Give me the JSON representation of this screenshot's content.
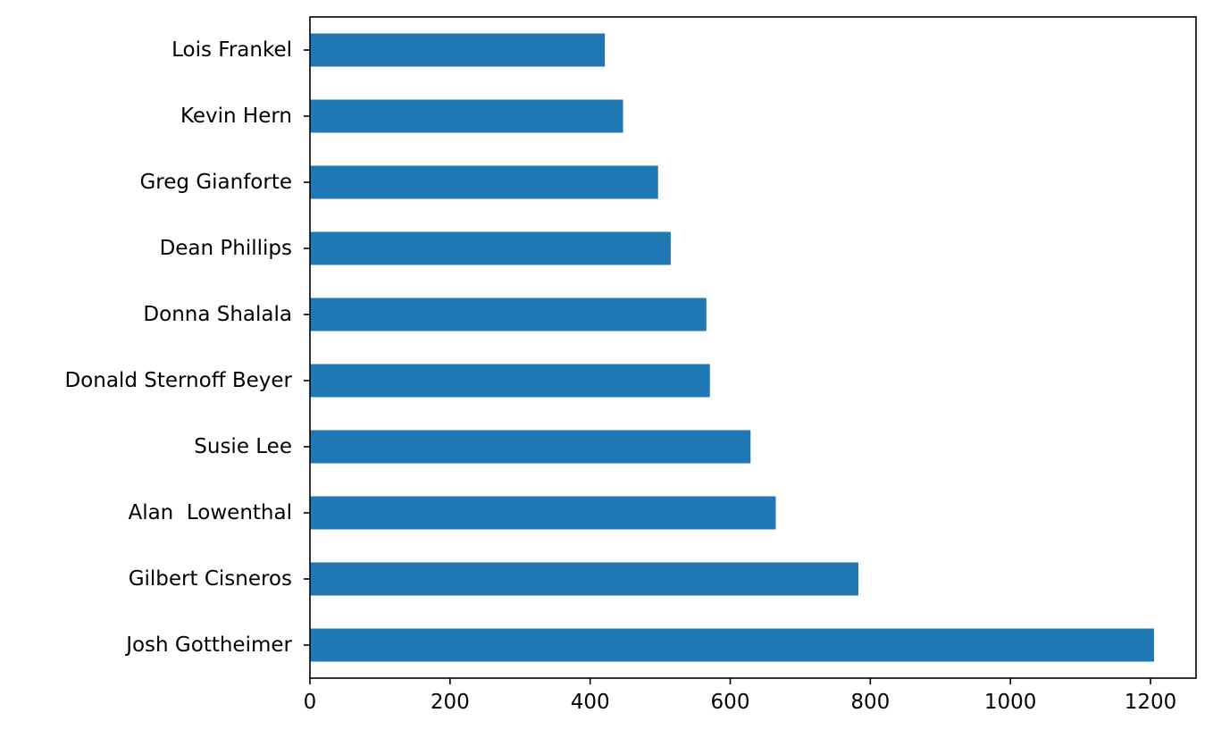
{
  "chart_data": {
    "type": "bar",
    "orientation": "horizontal",
    "title": "",
    "xlabel": "",
    "ylabel": "",
    "categories": [
      "Josh Gottheimer",
      "Gilbert Cisneros",
      "Alan  Lowenthal",
      "Susie Lee",
      "Donald Sternoff Beyer",
      "Donna Shalala",
      "Dean Phillips",
      "Greg Gianforte",
      "Kevin Hern",
      "Lois Frankel"
    ],
    "values": [
      1205,
      783,
      665,
      629,
      571,
      566,
      515,
      497,
      447,
      421
    ],
    "xlim": [
      0,
      1265
    ],
    "xticks": [
      0,
      200,
      400,
      600,
      800,
      1000,
      1200
    ],
    "xtick_labels": [
      "0",
      "200",
      "400",
      "600",
      "800",
      "1000",
      "1200"
    ],
    "bar_color": "#1f77b4",
    "grid": false,
    "legend": "none"
  }
}
